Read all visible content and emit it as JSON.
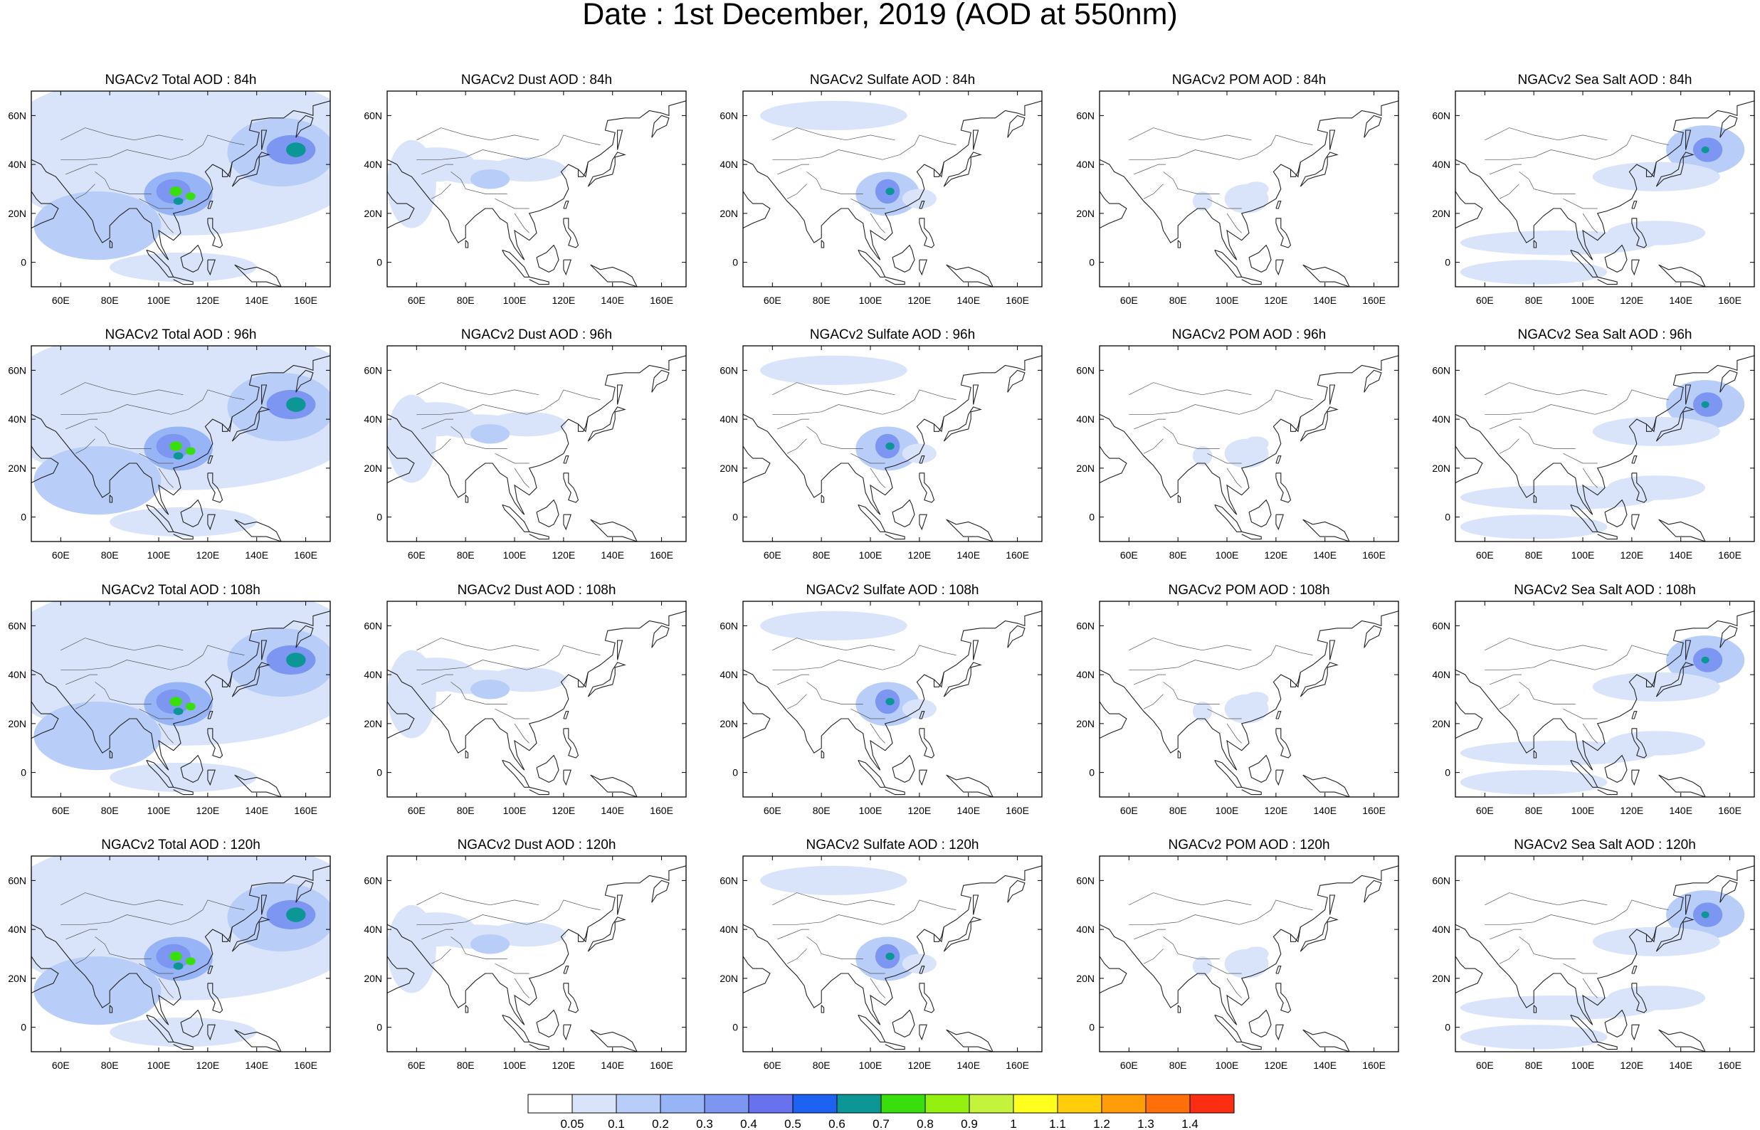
{
  "title": "Date : 1st December, 2019 (AOD at 550nm)",
  "colors": {
    "levels": [
      "#ffffff",
      "#d9e4fb",
      "#b8cdf8",
      "#97b4f6",
      "#7d96f1",
      "#6872ef",
      "#1e62f1",
      "#0c9696",
      "#39df0d",
      "#94f00e",
      "#c5f33c",
      "#ffff1e",
      "#ffcd09",
      "#ff9c08",
      "#ff700a",
      "#fb2d12"
    ],
    "coast": "#222222",
    "frame": "#000000"
  },
  "colorbar": {
    "labels": [
      "0.05",
      "0.1",
      "0.2",
      "0.3",
      "0.4",
      "0.5",
      "0.6",
      "0.7",
      "0.8",
      "0.9",
      "1",
      "1.1",
      "1.2",
      "1.3",
      "1.4"
    ]
  },
  "axes": {
    "lon_labels": [
      "60E",
      "80E",
      "100E",
      "120E",
      "140E",
      "160E"
    ],
    "lat_labels": [
      "60N",
      "40N",
      "20N",
      "0"
    ]
  },
  "panels": [
    {
      "title": "NGACv2 Total AOD : 84h",
      "species": "total",
      "lead": "84h"
    },
    {
      "title": "NGACv2 Dust AOD : 84h",
      "species": "dust",
      "lead": "84h"
    },
    {
      "title": "NGACv2 Sulfate AOD : 84h",
      "species": "sulfate",
      "lead": "84h"
    },
    {
      "title": "NGACv2 POM AOD : 84h",
      "species": "pom",
      "lead": "84h"
    },
    {
      "title": "NGACv2 Sea Salt AOD : 84h",
      "species": "seasalt",
      "lead": "84h"
    },
    {
      "title": "NGACv2 Total AOD : 96h",
      "species": "total",
      "lead": "96h"
    },
    {
      "title": "NGACv2 Dust AOD : 96h",
      "species": "dust",
      "lead": "96h"
    },
    {
      "title": "NGACv2 Sulfate AOD : 96h",
      "species": "sulfate",
      "lead": "96h"
    },
    {
      "title": "NGACv2 POM AOD : 96h",
      "species": "pom",
      "lead": "96h"
    },
    {
      "title": "NGACv2 Sea Salt AOD : 96h",
      "species": "seasalt",
      "lead": "96h"
    },
    {
      "title": "NGACv2 Total AOD : 108h",
      "species": "total",
      "lead": "108h"
    },
    {
      "title": "NGACv2 Dust AOD : 108h",
      "species": "dust",
      "lead": "108h"
    },
    {
      "title": "NGACv2 Sulfate AOD : 108h",
      "species": "sulfate",
      "lead": "108h"
    },
    {
      "title": "NGACv2 POM AOD : 108h",
      "species": "pom",
      "lead": "108h"
    },
    {
      "title": "NGACv2 Sea Salt AOD : 108h",
      "species": "seasalt",
      "lead": "108h"
    },
    {
      "title": "NGACv2 Total AOD : 120h",
      "species": "total",
      "lead": "120h"
    },
    {
      "title": "NGACv2 Dust AOD : 120h",
      "species": "dust",
      "lead": "120h"
    },
    {
      "title": "NGACv2 Sulfate AOD : 120h",
      "species": "sulfate",
      "lead": "120h"
    },
    {
      "title": "NGACv2 POM AOD : 120h",
      "species": "pom",
      "lead": "120h"
    },
    {
      "title": "NGACv2 Sea Salt  AOD : 120h",
      "species": "seasalt",
      "lead": "120h"
    }
  ]
}
